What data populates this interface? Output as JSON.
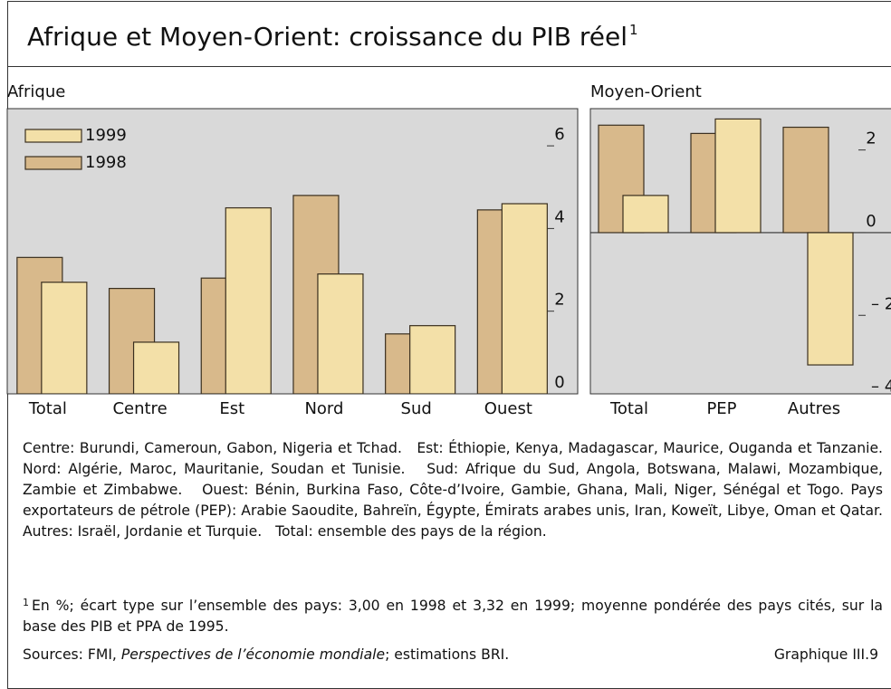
{
  "title": "Afrique et Moyen-Orient: croissance du PIB réel",
  "title_note": "1",
  "chart_data": [
    {
      "type": "bar",
      "title": "Afrique",
      "categories": [
        "Total",
        "Centre",
        "Est",
        "Nord",
        "Sud",
        "Ouest"
      ],
      "series": [
        {
          "name": "1998",
          "color": "#d8b98b",
          "values": [
            3.3,
            2.55,
            2.8,
            4.8,
            1.45,
            4.45
          ]
        },
        {
          "name": "1999",
          "color": "#f3e0a8",
          "values": [
            2.7,
            1.25,
            4.5,
            2.9,
            1.65,
            4.6
          ]
        }
      ],
      "ylim": [
        0,
        6.9
      ],
      "yticks": [
        0,
        2,
        4,
        6
      ],
      "legend": "top-left",
      "background": "#d9d9d9"
    },
    {
      "type": "bar",
      "title": "Moyen-Orient",
      "categories": [
        "Total",
        "PEP",
        "Autres"
      ],
      "series": [
        {
          "name": "1998",
          "color": "#d8b98b",
          "values": [
            2.6,
            2.4,
            2.55
          ]
        },
        {
          "name": "1999",
          "color": "#f3e0a8",
          "values": [
            0.9,
            2.75,
            -3.2
          ]
        }
      ],
      "ylim": [
        -3.9,
        3.0
      ],
      "yticks": [
        {
          "value": -4,
          "label": "– 4"
        },
        {
          "value": -2,
          "label": "– 2"
        },
        0,
        2
      ],
      "legend": false,
      "background": "#d9d9d9"
    }
  ],
  "notes": "Centre: Burundi, Cameroun, Gabon, Nigeria et Tchad.   Est: Éthiopie, Kenya, Madagascar, Maurice, Ouganda et Tanzanie.   Nord: Algérie, Maroc, Mauritanie, Soudan et Tunisie.   Sud: Afrique du Sud, Angola, Botswana, Malawi, Mozambique, Zambie et Zimbabwe.   Ouest: Bénin, Burkina Faso, Côte-d’Ivoire, Gambie, Ghana, Mali, Niger, Sénégal et Togo. Pays exportateurs de pétrole (PEP): Arabie Saoudite, Bahreïn, Égypte, Émirats arabes unis, Iran, Koweït, Libye, Oman et Qatar.   Autres: Israël, Jordanie et Turquie.   Total: ensemble des pays de la région.",
  "footnote_mark": "1",
  "footnote": "En %; écart type sur l’ensemble des pays: 3,00 en 1998 et 3,32 en 1999; moyenne pondérée des pays cités, sur la base des PIB et PPA de 1995.",
  "source_prefix": "Sources: FMI,",
  "source_title": "Perspectives de l’économie mondiale",
  "source_suffix": "; estimations BRI.",
  "chart_number": "Graphique III.9"
}
